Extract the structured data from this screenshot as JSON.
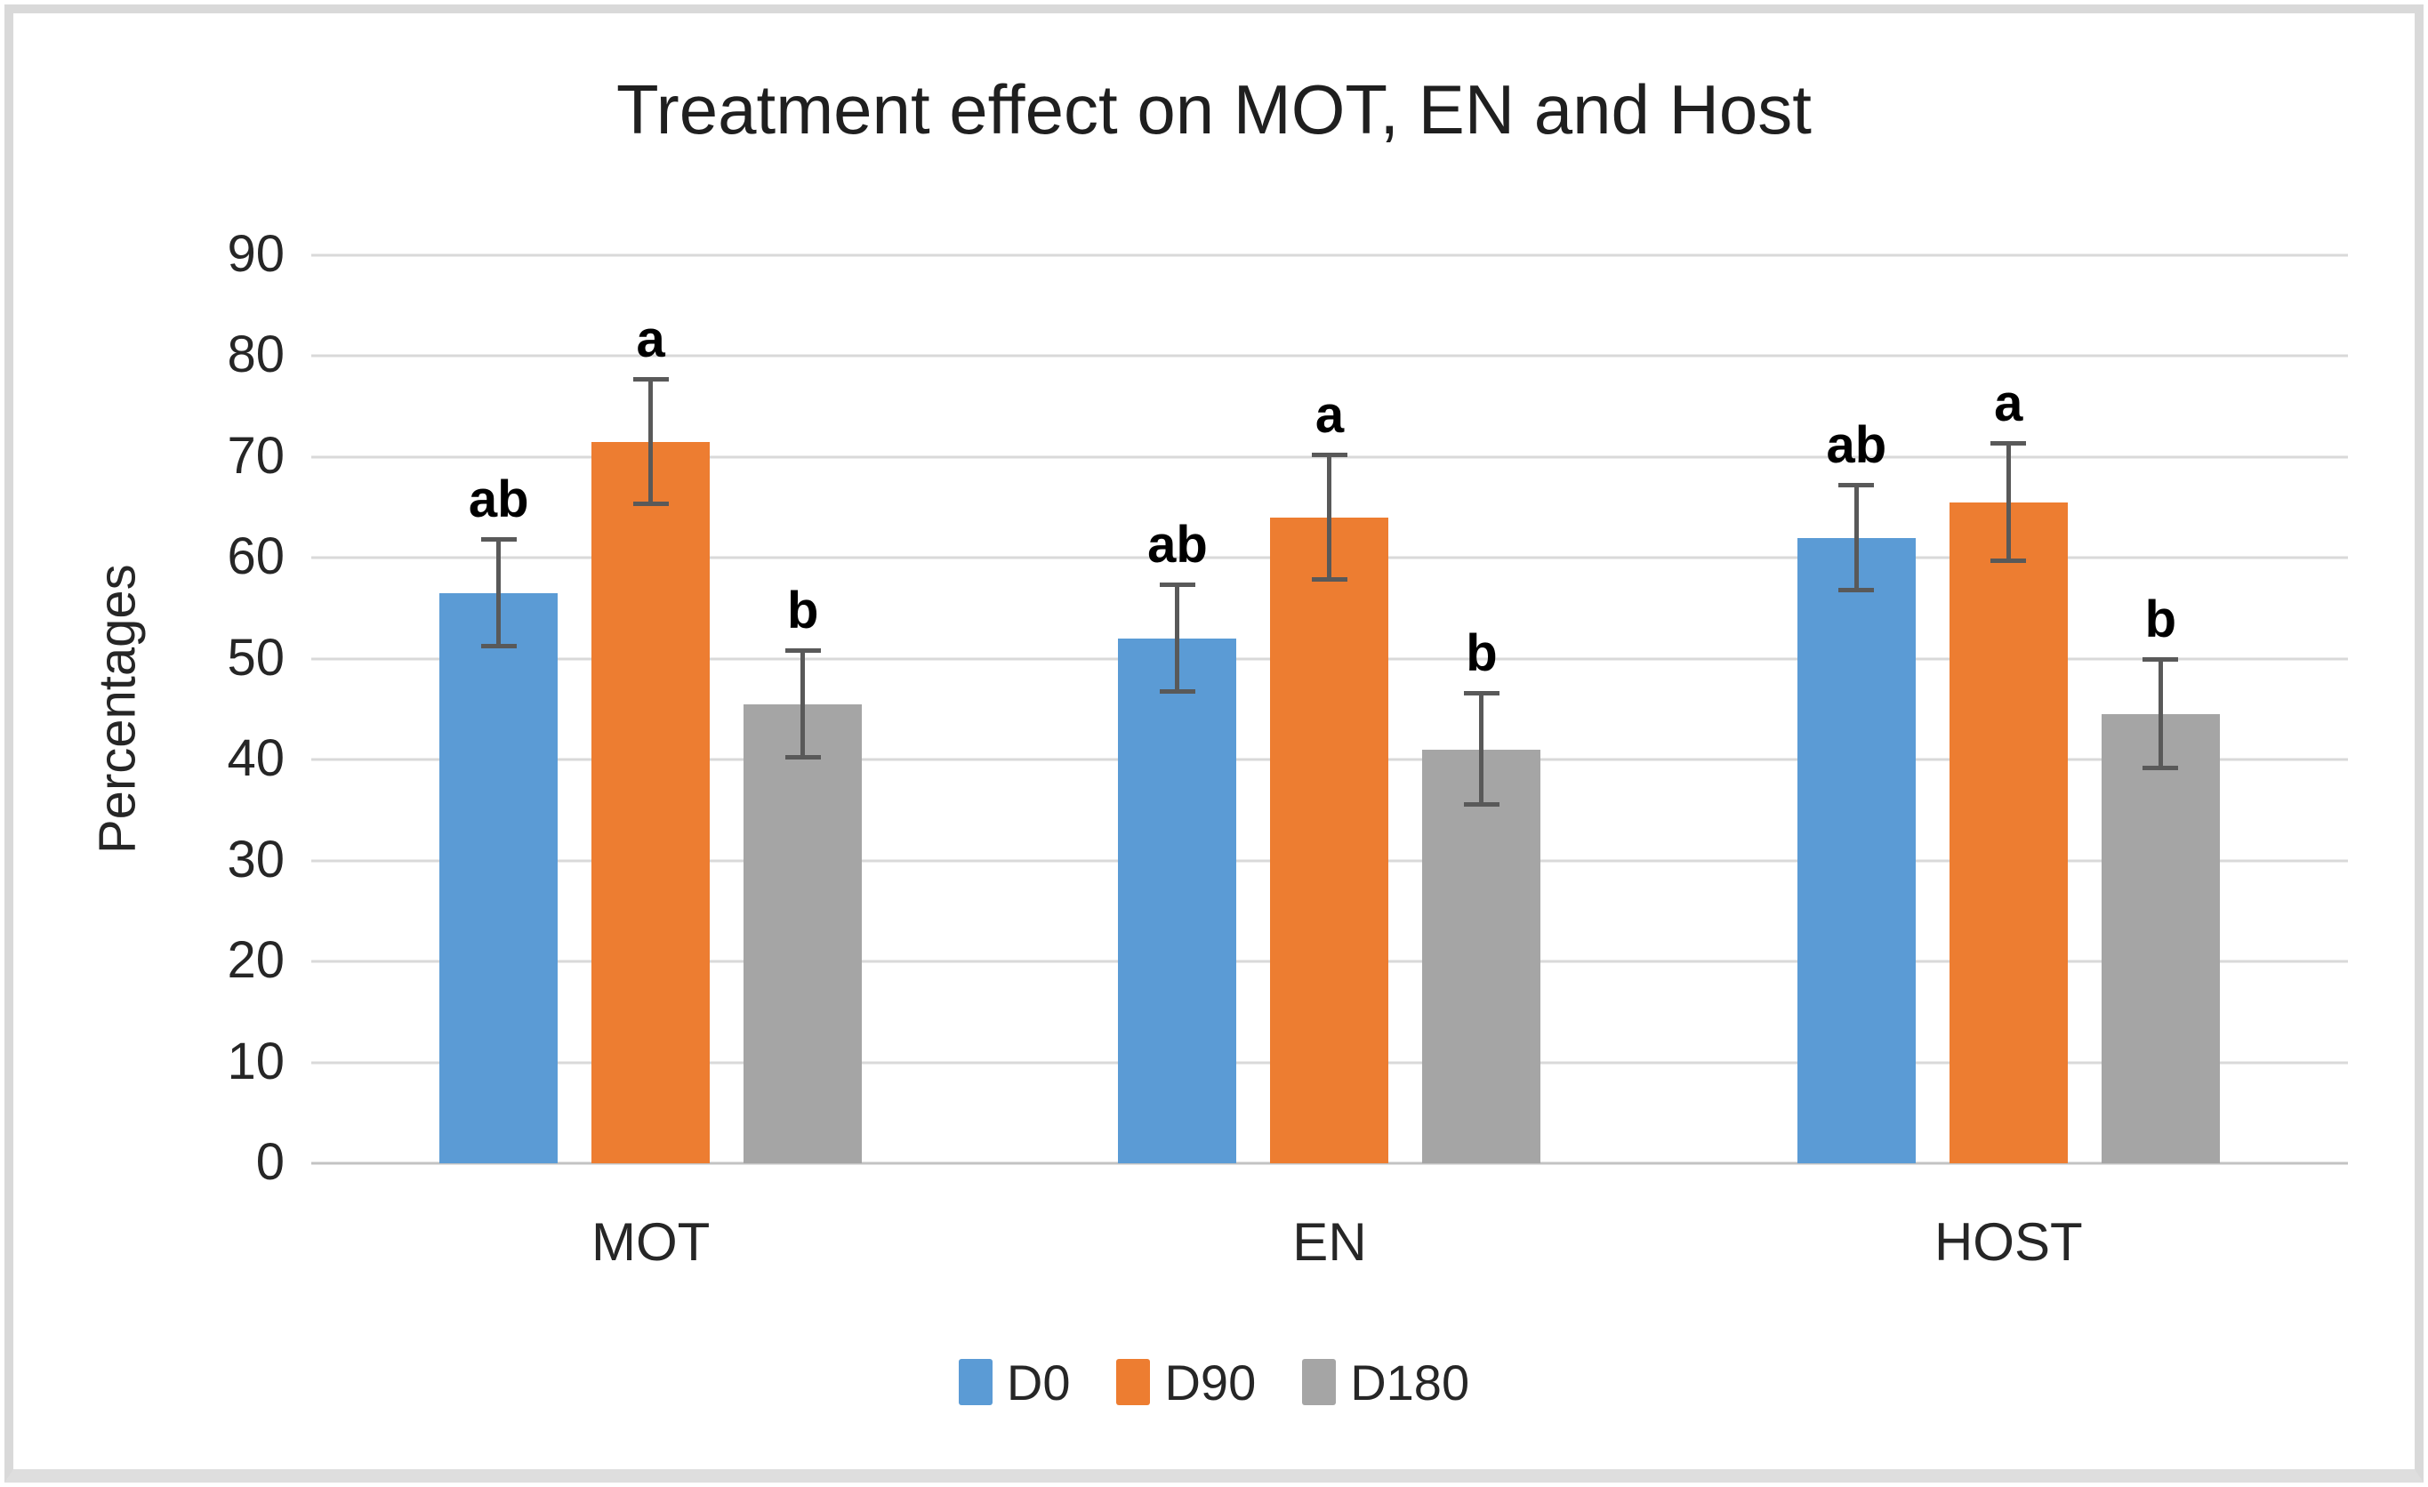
{
  "figure": {
    "background": "#ffffff",
    "border_color": "#d9d9d9"
  },
  "chart_data": {
    "type": "bar",
    "title": "Treatment effect on MOT, EN and Host",
    "xlabel": "",
    "ylabel": "Percentages",
    "ylim": [
      0,
      90
    ],
    "ytick_step": 10,
    "yticks": [
      0,
      10,
      20,
      30,
      40,
      50,
      60,
      70,
      80,
      90
    ],
    "grid": true,
    "gridline_color": "#d9d9d9",
    "error_bar_color": "#595959",
    "legend_position": "bottom",
    "categories": [
      "MOT",
      "EN",
      "HOST"
    ],
    "series": [
      {
        "name": "D0",
        "color": "#5B9BD5",
        "values": [
          56.5,
          52,
          62
        ],
        "errors": [
          5.3,
          5.3,
          5.2
        ],
        "sig_letters": [
          "ab",
          "ab",
          "ab"
        ]
      },
      {
        "name": "D90",
        "color": "#ED7D31",
        "values": [
          71.5,
          64,
          65.5
        ],
        "errors": [
          6.2,
          6.2,
          5.8
        ],
        "sig_letters": [
          "a",
          "a",
          "a"
        ]
      },
      {
        "name": "D180",
        "color": "#A5A5A5",
        "values": [
          45.5,
          41,
          44.5
        ],
        "errors": [
          5.3,
          5.5,
          5.4
        ],
        "sig_letters": [
          "b",
          "b",
          "b"
        ]
      }
    ]
  }
}
